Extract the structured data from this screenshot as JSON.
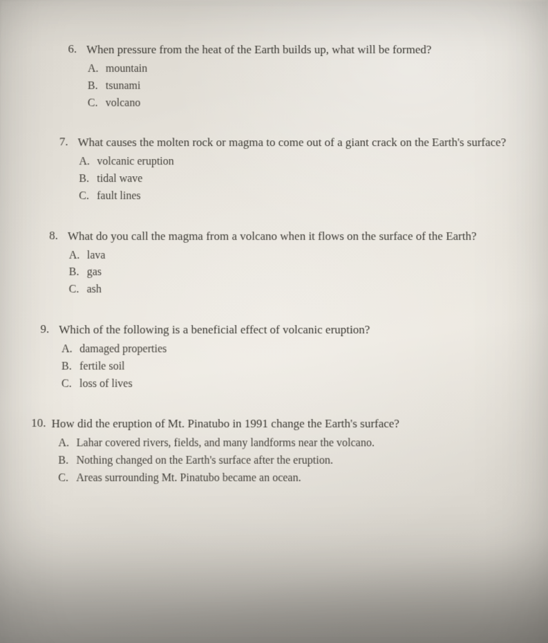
{
  "colors": {
    "text": "#3c3a34",
    "text_dim": "#45423c",
    "paper_light": "#ece8e0",
    "paper_mid": "#e6e2da",
    "paper_dark": "#d0ccc4"
  },
  "typography": {
    "family": "Times New Roman, Georgia, serif",
    "question_fontsize_pt": 13,
    "option_fontsize_pt": 12
  },
  "questions": [
    {
      "number": "6.",
      "text": "When pressure from the heat of the Earth builds up, what will be formed?",
      "options": [
        {
          "letter": "A.",
          "text": "mountain"
        },
        {
          "letter": "B.",
          "text": "tsunami"
        },
        {
          "letter": "C.",
          "text": "volcano"
        }
      ]
    },
    {
      "number": "7.",
      "text": "What causes the molten rock or magma to come out of a giant crack on the Earth's surface?",
      "options": [
        {
          "letter": "A.",
          "text": "volcanic eruption"
        },
        {
          "letter": "B.",
          "text": "tidal wave"
        },
        {
          "letter": "C.",
          "text": "fault lines"
        }
      ]
    },
    {
      "number": "8.",
      "text": "What do you call the magma from a volcano when it flows on the surface of the Earth?",
      "options": [
        {
          "letter": "A.",
          "text": "lava"
        },
        {
          "letter": "B.",
          "text": "gas"
        },
        {
          "letter": "C.",
          "text": "ash"
        }
      ]
    },
    {
      "number": "9.",
      "text": "Which of the following is a beneficial effect of volcanic eruption?",
      "options": [
        {
          "letter": "A.",
          "text": "damaged properties"
        },
        {
          "letter": "B.",
          "text": "fertile soil"
        },
        {
          "letter": "C.",
          "text": "loss of lives"
        }
      ]
    },
    {
      "number": "10.",
      "text": "How did the eruption of Mt. Pinatubo in 1991 change the Earth's surface?",
      "options": [
        {
          "letter": "A.",
          "text": "Lahar covered rivers, fields, and many landforms near the volcano."
        },
        {
          "letter": "B.",
          "text": "Nothing changed on the Earth's surface after the eruption."
        },
        {
          "letter": "C.",
          "text": "Areas surrounding Mt. Pinatubo became an ocean."
        }
      ]
    }
  ]
}
